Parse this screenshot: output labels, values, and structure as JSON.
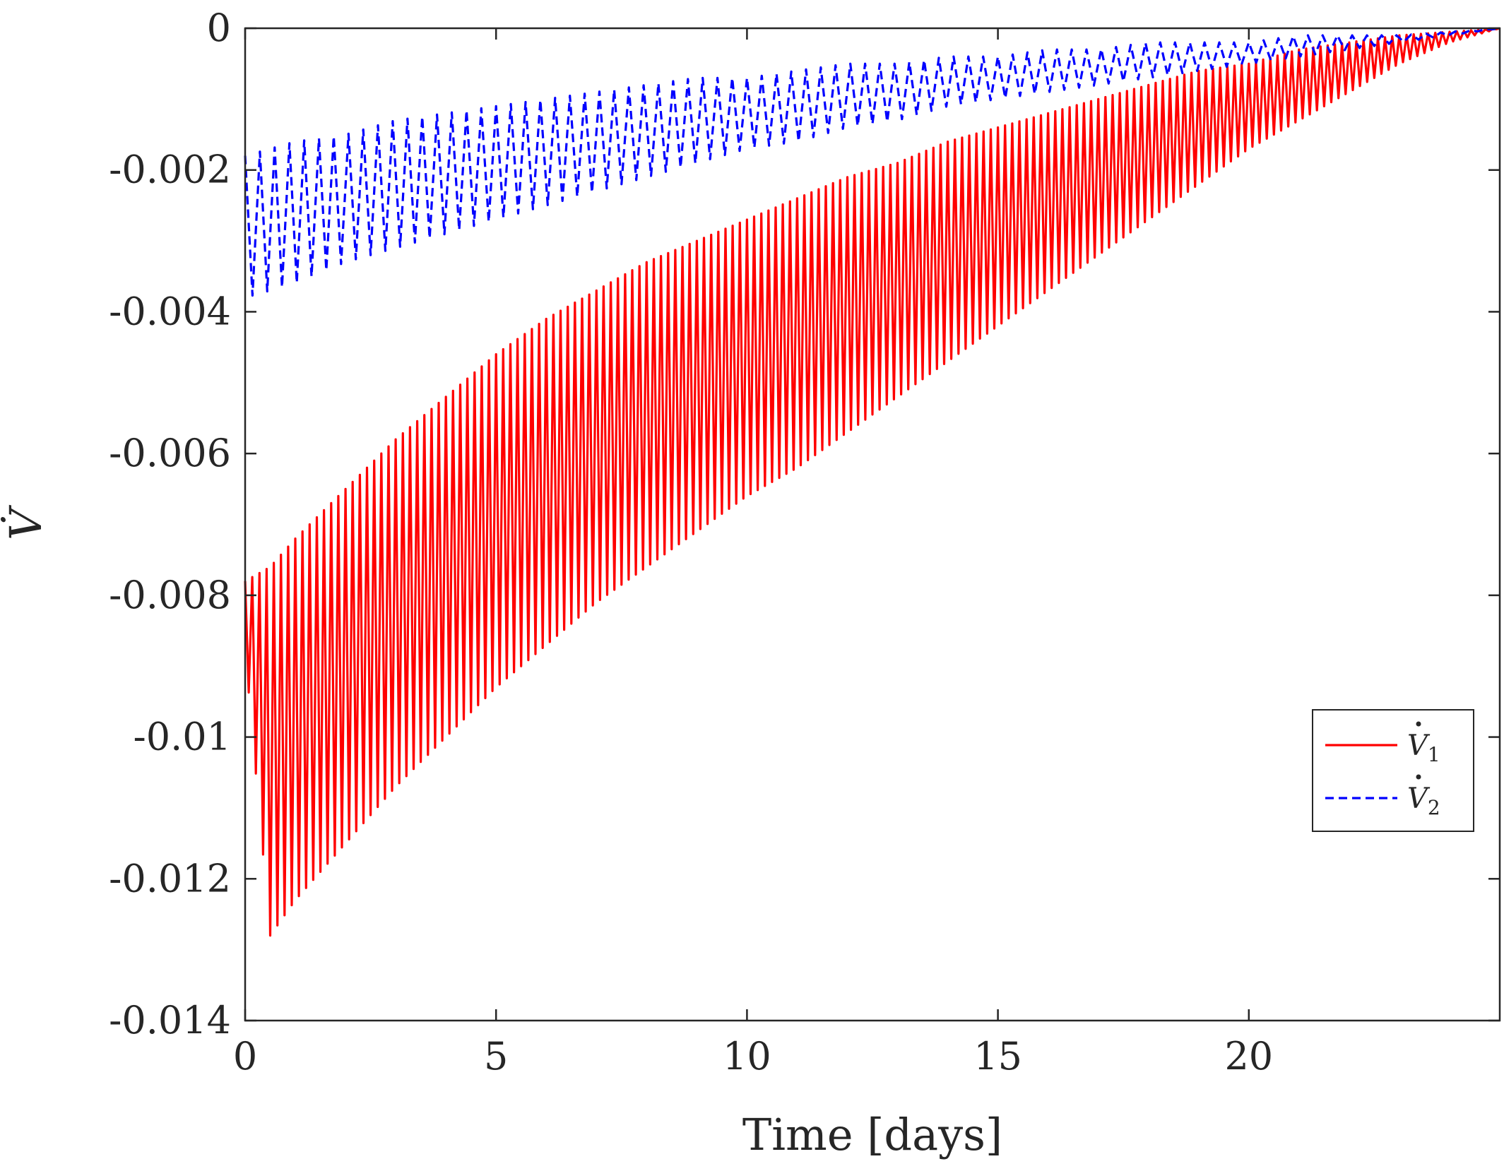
{
  "chart_data": {
    "type": "line",
    "title": "",
    "xlabel": "Time [days]",
    "ylabel": "V̇",
    "xlim": [
      0,
      25
    ],
    "ylim": [
      -0.014,
      0
    ],
    "xticks": [
      0,
      5,
      10,
      15,
      20
    ],
    "xtick_labels": [
      "0",
      "5",
      "10",
      "15",
      "20"
    ],
    "yticks": [
      0,
      -0.002,
      -0.004,
      -0.006,
      -0.008,
      -0.01,
      -0.012,
      -0.014
    ],
    "ytick_labels": [
      "0",
      "-0.002",
      "-0.004",
      "-0.006",
      "-0.008",
      "-0.01",
      "-0.012",
      "-0.014"
    ],
    "grid": false,
    "legend_position": "right",
    "series": [
      {
        "name": "V̇1",
        "name_base": "V",
        "name_sub": "1",
        "color": "#ff0000",
        "style": "solid",
        "x": [
          0,
          0.5,
          1,
          2,
          3,
          4,
          5,
          6,
          7,
          8,
          9,
          10,
          11,
          12,
          13,
          14,
          15,
          16,
          17,
          18,
          19,
          20,
          21,
          22,
          23,
          24,
          25
        ],
        "upper": [
          -0.0078,
          -0.0076,
          -0.0072,
          -0.0065,
          -0.0058,
          -0.0052,
          -0.0046,
          -0.0041,
          -0.0037,
          -0.0033,
          -0.003,
          -0.0027,
          -0.0024,
          -0.0021,
          -0.0019,
          -0.0016,
          -0.0014,
          -0.0012,
          -0.001,
          -0.0008,
          -0.0006,
          -0.0005,
          -0.0003,
          -0.0002,
          -0.0001,
          -5e-05,
          0
        ],
        "lower": [
          -0.0088,
          -0.0128,
          -0.0123,
          -0.0115,
          -0.0107,
          -0.01,
          -0.0093,
          -0.0087,
          -0.0081,
          -0.0076,
          -0.0071,
          -0.0066,
          -0.0062,
          -0.0057,
          -0.0052,
          -0.0047,
          -0.0042,
          -0.0037,
          -0.0032,
          -0.0027,
          -0.0022,
          -0.0017,
          -0.0013,
          -0.0009,
          -0.0005,
          -0.0002,
          0
        ],
        "cycles": 175
      },
      {
        "name": "V̇2",
        "name_base": "V",
        "name_sub": "2",
        "color": "#0000ff",
        "style": "dashed",
        "x": [
          0,
          1,
          2,
          3,
          4,
          5,
          6,
          7,
          8,
          9,
          10,
          11,
          12,
          13,
          14,
          15,
          16,
          17,
          18,
          19,
          20,
          21,
          22,
          23,
          24,
          25
        ],
        "upper": [
          -0.0018,
          -0.0016,
          -0.0015,
          -0.0013,
          -0.0012,
          -0.0011,
          -0.001,
          -0.0009,
          -0.0008,
          -0.0007,
          -0.0007,
          -0.0006,
          -0.0005,
          -0.0005,
          -0.0004,
          -0.0004,
          -0.0003,
          -0.0003,
          -0.0002,
          -0.0002,
          -0.0002,
          -0.0001,
          -0.0001,
          -0.0001,
          -5e-05,
          0
        ],
        "lower": [
          -0.0038,
          -0.0036,
          -0.0033,
          -0.0031,
          -0.0029,
          -0.0027,
          -0.0025,
          -0.0023,
          -0.0021,
          -0.0019,
          -0.0017,
          -0.0016,
          -0.0014,
          -0.0013,
          -0.0011,
          -0.001,
          -0.0009,
          -0.0008,
          -0.0007,
          -0.0006,
          -0.0005,
          -0.0004,
          -0.0003,
          -0.0002,
          -0.0001,
          0
        ],
        "cycles": 85
      }
    ]
  }
}
